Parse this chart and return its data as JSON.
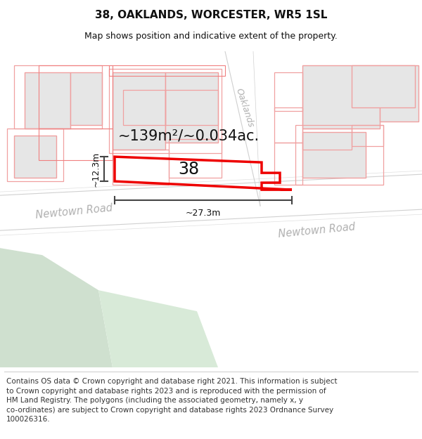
{
  "title_line1": "38, OAKLANDS, WORCESTER, WR5 1SL",
  "title_line2": "Map shows position and indicative extent of the property.",
  "footer_text": "Contains OS data © Crown copyright and database right 2021. This information is subject\nto Crown copyright and database rights 2023 and is reproduced with the permission of\nHM Land Registry. The polygons (including the associated geometry, namely x, y\nco-ordinates) are subject to Crown copyright and database rights 2023 Ordnance Survey\n100026316.",
  "area_label": "~139m²/~0.034ac.",
  "property_number": "38",
  "dim_width": "~27.3m",
  "dim_height": "~12.3m",
  "road_label_left": "Newtown Road",
  "road_label_right": "Newtown Road",
  "street_label": "Oaklands",
  "bg_color": "#ffffff",
  "map_bg": "#f7f7f7",
  "building_fill": "#e6e6e6",
  "building_stroke_pink": "#f0a0a0",
  "red_outline": "#ee0000",
  "green_fill": "#cfe0cf",
  "dim_color": "#444444",
  "road_text_color": "#aaaaaa",
  "title_fontsize": 11,
  "subtitle_fontsize": 9,
  "footer_fontsize": 7.5,
  "area_fontsize": 15,
  "prop_num_fontsize": 17
}
